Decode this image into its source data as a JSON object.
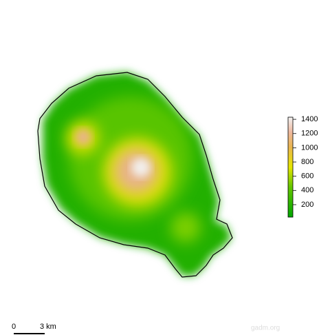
{
  "legend": {
    "lim": [
      25,
      1430
    ],
    "ticks": [
      200,
      400,
      600,
      800,
      1000,
      1200,
      1400
    ]
  },
  "scale_bar": {
    "start": "0",
    "end": "3 km"
  },
  "watermark": "gadm.org"
}
